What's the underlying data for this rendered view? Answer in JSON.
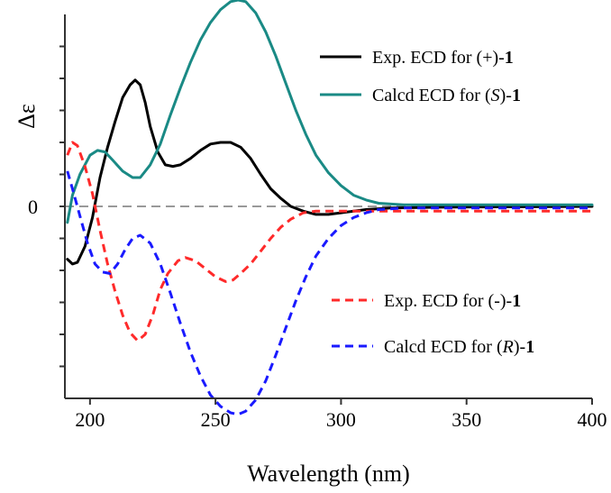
{
  "chart_data": {
    "type": "line",
    "xlabel": "Wavelength (nm)",
    "ylabel": "Δε",
    "xlim": [
      190,
      400
    ],
    "ylim": [
      -12,
      12
    ],
    "x_ticks": [
      200,
      250,
      300,
      350,
      400
    ],
    "y_tick_labels": [
      {
        "value": 0,
        "label": "0"
      }
    ],
    "y_minor_ticks": [
      10,
      8,
      6,
      4,
      2,
      -2,
      -4,
      -6,
      -8,
      -10
    ],
    "zero_line": {
      "style": "dashed",
      "color": "#999999"
    },
    "legend": [
      {
        "series": "exp_plus",
        "prefix": "Exp. ECD for (+)-",
        "italic": "",
        "suffix": "",
        "bold": "1"
      },
      {
        "series": "calc_S",
        "prefix": "Calcd ECD for (",
        "italic": "S",
        "suffix": ")-",
        "bold": "1"
      },
      {
        "series": "exp_minus",
        "prefix": "Exp. ECD for (-)-",
        "italic": "",
        "suffix": "",
        "bold": "1"
      },
      {
        "series": "calc_R",
        "prefix": "Calcd ECD for (",
        "italic": "R",
        "suffix": ")-",
        "bold": "1"
      }
    ],
    "series": [
      {
        "key": "exp_plus",
        "color": "#000000",
        "dash": "solid",
        "points": [
          [
            191,
            -3.3
          ],
          [
            193,
            -3.6
          ],
          [
            195,
            -3.5
          ],
          [
            198,
            -2.5
          ],
          [
            201,
            -0.7
          ],
          [
            204,
            1.8
          ],
          [
            207,
            3.7
          ],
          [
            210,
            5.3
          ],
          [
            213,
            6.8
          ],
          [
            216,
            7.6
          ],
          [
            218,
            7.9
          ],
          [
            220,
            7.6
          ],
          [
            222,
            6.5
          ],
          [
            224,
            5.0
          ],
          [
            227,
            3.4
          ],
          [
            230,
            2.6
          ],
          [
            233,
            2.5
          ],
          [
            236,
            2.6
          ],
          [
            240,
            3.0
          ],
          [
            244,
            3.5
          ],
          [
            248,
            3.9
          ],
          [
            252,
            4.0
          ],
          [
            256,
            4.0
          ],
          [
            260,
            3.7
          ],
          [
            264,
            3.0
          ],
          [
            268,
            2.0
          ],
          [
            272,
            1.1
          ],
          [
            276,
            0.5
          ],
          [
            280,
            0.0
          ],
          [
            285,
            -0.3
          ],
          [
            290,
            -0.5
          ],
          [
            295,
            -0.5
          ],
          [
            300,
            -0.4
          ],
          [
            310,
            -0.2
          ],
          [
            320,
            -0.1
          ],
          [
            340,
            -0.05
          ],
          [
            400,
            0.0
          ]
        ]
      },
      {
        "key": "calc_S",
        "color": "#1a8a85",
        "dash": "solid",
        "points": [
          [
            191,
            -1.0
          ],
          [
            193,
            0.7
          ],
          [
            196,
            2.0
          ],
          [
            200,
            3.2
          ],
          [
            203,
            3.5
          ],
          [
            206,
            3.4
          ],
          [
            209,
            2.9
          ],
          [
            213,
            2.2
          ],
          [
            217,
            1.8
          ],
          [
            220,
            1.8
          ],
          [
            224,
            2.6
          ],
          [
            228,
            3.9
          ],
          [
            232,
            5.7
          ],
          [
            236,
            7.4
          ],
          [
            240,
            9.0
          ],
          [
            244,
            10.4
          ],
          [
            248,
            11.5
          ],
          [
            252,
            12.3
          ],
          [
            256,
            12.8
          ],
          [
            259,
            12.9
          ],
          [
            262,
            12.8
          ],
          [
            266,
            12.1
          ],
          [
            270,
            10.9
          ],
          [
            274,
            9.4
          ],
          [
            278,
            7.7
          ],
          [
            282,
            6.0
          ],
          [
            286,
            4.5
          ],
          [
            290,
            3.2
          ],
          [
            295,
            2.1
          ],
          [
            300,
            1.3
          ],
          [
            305,
            0.7
          ],
          [
            310,
            0.4
          ],
          [
            315,
            0.2
          ],
          [
            325,
            0.1
          ],
          [
            340,
            0.1
          ],
          [
            400,
            0.1
          ]
        ]
      },
      {
        "key": "exp_minus",
        "color": "#ff2a2a",
        "dash": "dashed",
        "points": [
          [
            191,
            3.2
          ],
          [
            193,
            4.0
          ],
          [
            195,
            3.8
          ],
          [
            198,
            2.5
          ],
          [
            201,
            0.8
          ],
          [
            204,
            -1.5
          ],
          [
            207,
            -3.6
          ],
          [
            210,
            -5.3
          ],
          [
            213,
            -6.8
          ],
          [
            216,
            -7.9
          ],
          [
            219,
            -8.4
          ],
          [
            222,
            -8.0
          ],
          [
            225,
            -6.8
          ],
          [
            228,
            -5.2
          ],
          [
            231,
            -4.2
          ],
          [
            235,
            -3.4
          ],
          [
            238,
            -3.2
          ],
          [
            242,
            -3.4
          ],
          [
            246,
            -3.9
          ],
          [
            250,
            -4.4
          ],
          [
            254,
            -4.7
          ],
          [
            257,
            -4.6
          ],
          [
            260,
            -4.2
          ],
          [
            264,
            -3.6
          ],
          [
            268,
            -2.8
          ],
          [
            272,
            -2.0
          ],
          [
            276,
            -1.3
          ],
          [
            280,
            -0.8
          ],
          [
            285,
            -0.4
          ],
          [
            290,
            -0.3
          ],
          [
            300,
            -0.3
          ],
          [
            320,
            -0.3
          ],
          [
            340,
            -0.3
          ],
          [
            400,
            -0.3
          ]
        ]
      },
      {
        "key": "calc_R",
        "color": "#1a1aff",
        "dash": "dashed",
        "points": [
          [
            191,
            2.2
          ],
          [
            193,
            1.1
          ],
          [
            196,
            -0.6
          ],
          [
            199,
            -2.3
          ],
          [
            202,
            -3.6
          ],
          [
            205,
            -4.1
          ],
          [
            208,
            -4.2
          ],
          [
            211,
            -3.6
          ],
          [
            214,
            -2.7
          ],
          [
            217,
            -2.0
          ],
          [
            220,
            -1.8
          ],
          [
            224,
            -2.3
          ],
          [
            228,
            -3.6
          ],
          [
            232,
            -5.4
          ],
          [
            236,
            -7.3
          ],
          [
            240,
            -9.1
          ],
          [
            244,
            -10.6
          ],
          [
            248,
            -11.8
          ],
          [
            252,
            -12.5
          ],
          [
            256,
            -12.9
          ],
          [
            259,
            -13.0
          ],
          [
            262,
            -12.8
          ],
          [
            266,
            -12.1
          ],
          [
            270,
            -10.9
          ],
          [
            274,
            -9.3
          ],
          [
            278,
            -7.6
          ],
          [
            282,
            -5.9
          ],
          [
            286,
            -4.4
          ],
          [
            290,
            -3.1
          ],
          [
            295,
            -2.0
          ],
          [
            300,
            -1.2
          ],
          [
            305,
            -0.7
          ],
          [
            310,
            -0.4
          ],
          [
            315,
            -0.2
          ],
          [
            325,
            -0.1
          ],
          [
            340,
            -0.1
          ],
          [
            400,
            -0.1
          ]
        ]
      }
    ]
  }
}
